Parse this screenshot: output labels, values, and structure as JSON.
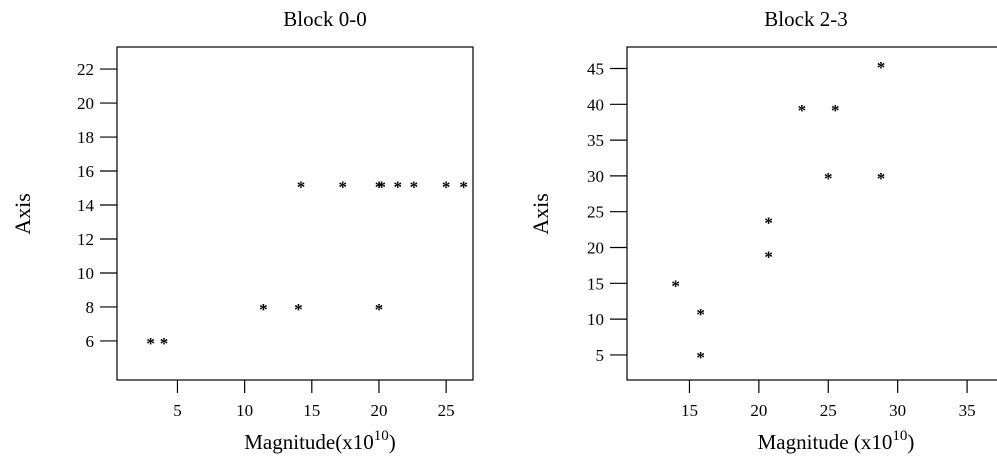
{
  "chart_data": [
    {
      "type": "scatter",
      "title": "Block 0-0",
      "xlabel_main": "Magnitude(x10",
      "xlabel_exp": "10",
      "xlabel_close": ")",
      "ylabel": "Axis",
      "marker": "*",
      "x_ticks": [
        5,
        10,
        15,
        20,
        25
      ],
      "y_ticks": [
        6,
        8,
        10,
        12,
        14,
        16,
        18,
        20,
        22
      ],
      "xlim": [
        0.5,
        27
      ],
      "ylim": [
        3.7,
        23.3
      ],
      "x": [
        3,
        4,
        11.4,
        14,
        14.2,
        17.3,
        20,
        20.2,
        21.4,
        22.6,
        25,
        26.3,
        20
      ],
      "y": [
        6,
        6,
        8,
        8,
        15.2,
        15.2,
        15.2,
        15.2,
        15.2,
        15.2,
        15.2,
        15.2,
        8
      ]
    },
    {
      "type": "scatter",
      "title": "Block 2-3",
      "xlabel_main": "Magnitude (x10",
      "xlabel_exp": "10",
      "xlabel_close": ")",
      "ylabel": "Axis",
      "marker": "*",
      "x_ticks": [
        15,
        20,
        25,
        30,
        35
      ],
      "y_ticks": [
        5,
        10,
        15,
        20,
        25,
        30,
        35,
        40,
        45
      ],
      "xlim": [
        10.5,
        37.3
      ],
      "ylim": [
        1.5,
        48
      ],
      "x": [
        14,
        15.8,
        15.8,
        20.7,
        20.7,
        23.1,
        25,
        25.5,
        28.8,
        28.8
      ],
      "y": [
        15,
        11,
        5,
        19,
        23.8,
        39.5,
        30,
        39.5,
        30,
        45.5
      ]
    }
  ]
}
